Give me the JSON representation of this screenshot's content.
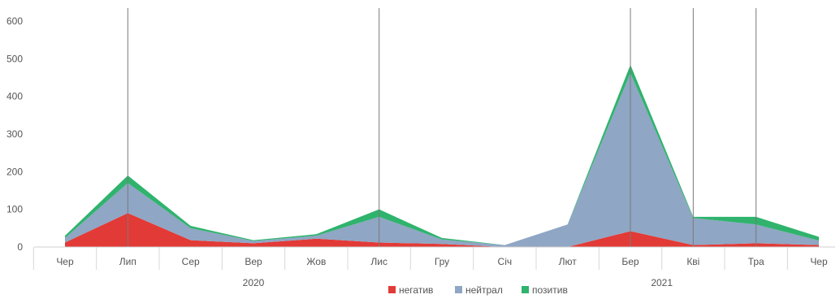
{
  "chart_data": {
    "type": "area",
    "stacked": true,
    "categories": [
      "Чер",
      "Лип",
      "Сер",
      "Вер",
      "Жов",
      "Лис",
      "Гру",
      "Січ",
      "Лют",
      "Бер",
      "Кві",
      "Тра",
      "Чер"
    ],
    "year_groups": [
      {
        "label": "2020",
        "start": 0,
        "end": 6
      },
      {
        "label": "2021",
        "start": 7,
        "end": 12
      }
    ],
    "series": [
      {
        "name": "негатив",
        "color": "#e23a36",
        "values": [
          12,
          90,
          18,
          10,
          22,
          12,
          8,
          0,
          0,
          42,
          5,
          10,
          5
        ]
      },
      {
        "name": "нейтрал",
        "color": "#8fa6c4",
        "values": [
          12,
          80,
          32,
          6,
          8,
          68,
          12,
          5,
          60,
          420,
          72,
          50,
          12
        ]
      },
      {
        "name": "позитив",
        "color": "#2fb36d",
        "values": [
          6,
          20,
          6,
          2,
          4,
          20,
          4,
          0,
          0,
          22,
          3,
          20,
          10
        ]
      }
    ],
    "y_ticks": [
      0,
      100,
      200,
      300,
      400,
      500,
      600
    ],
    "ylim": [
      0,
      600
    ],
    "vertical_markers_at": [
      1,
      5,
      9,
      10,
      11
    ],
    "legend_position": "bottom-center",
    "grid": false
  }
}
